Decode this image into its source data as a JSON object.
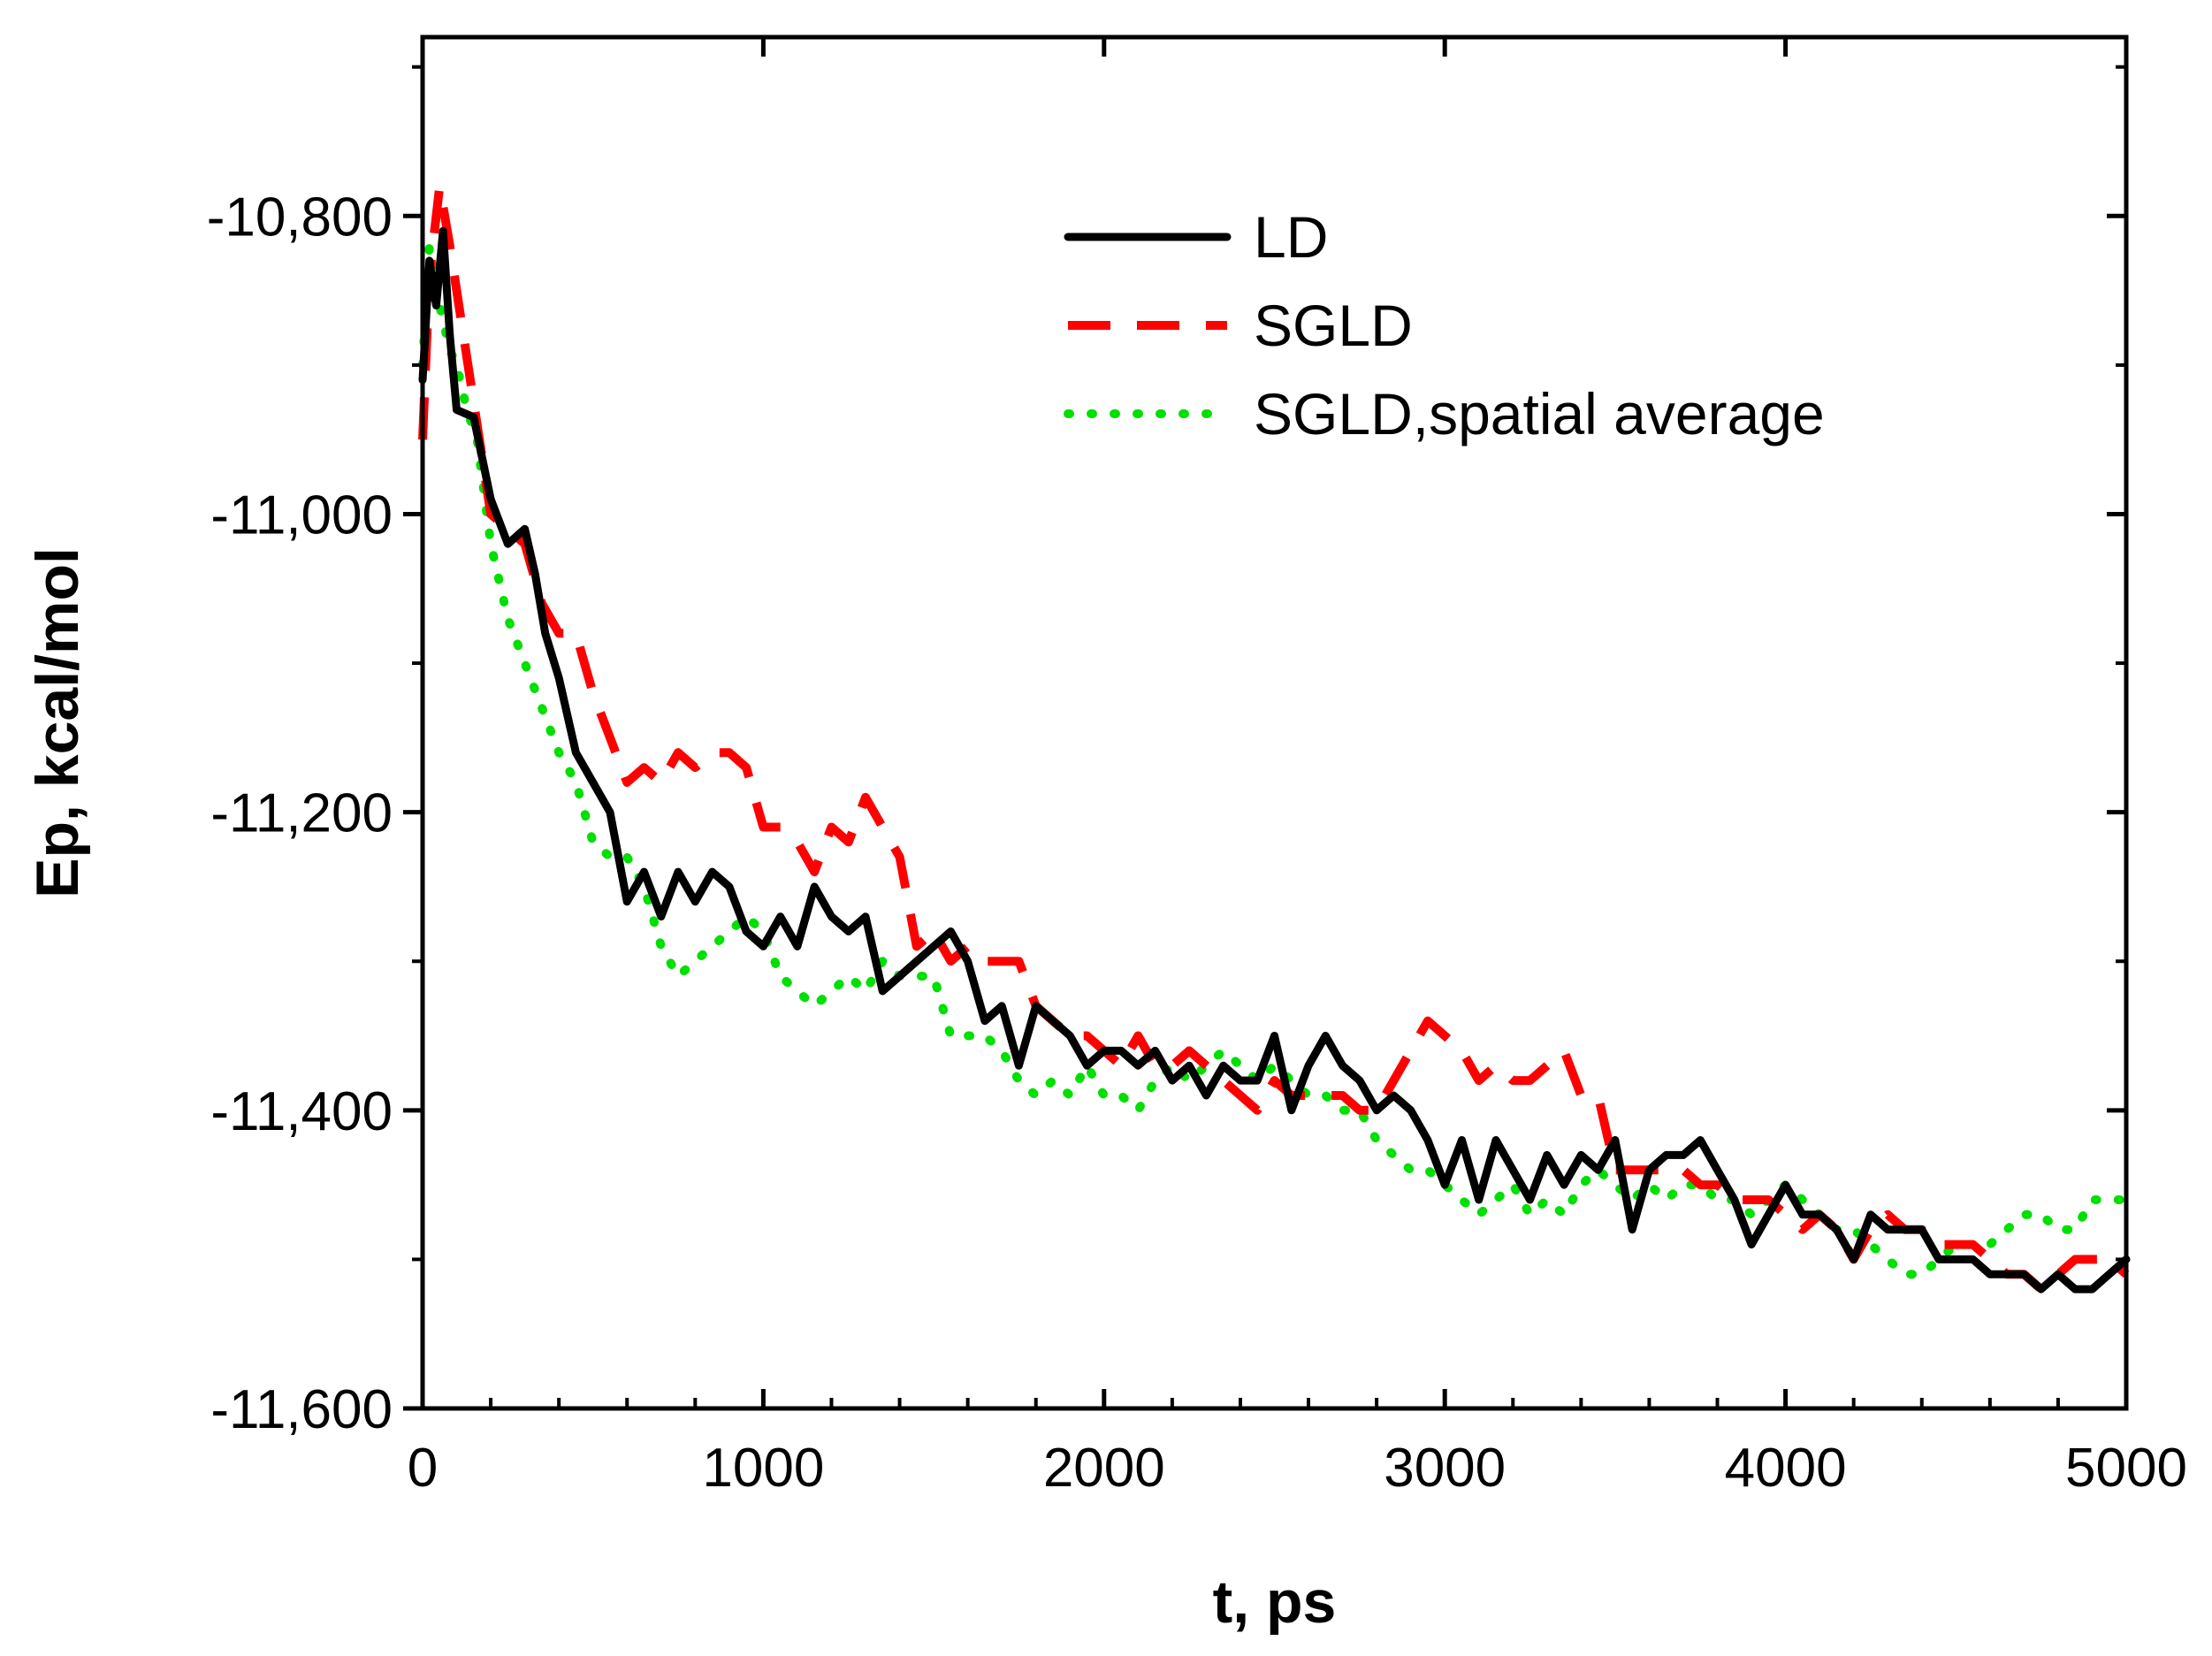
{
  "chart_data": {
    "type": "line",
    "title": "",
    "xlabel": "t, ps",
    "ylabel": "Ep, kcal/mol",
    "xlim": [
      0,
      5000
    ],
    "ylim": [
      -11600,
      -10680
    ],
    "x_ticks": [
      0,
      1000,
      2000,
      3000,
      4000,
      5000
    ],
    "x_tick_labels": [
      "0",
      "1000",
      "2000",
      "3000",
      "4000",
      "5000"
    ],
    "y_ticks": [
      -11600,
      -11400,
      -11200,
      -11000,
      -10800
    ],
    "y_tick_labels": [
      "-11,600",
      "-11,400",
      "-11,200",
      "-11,000",
      "-10,800"
    ],
    "x_minor_step": 200,
    "y_minor_step": 100,
    "grid": false,
    "legend_position": "top-right",
    "series": [
      {
        "name": "LD",
        "color": "#000000",
        "style": "solid",
        "x": [
          0,
          20,
          40,
          60,
          80,
          100,
          150,
          200,
          250,
          300,
          330,
          360,
          400,
          450,
          500,
          550,
          600,
          650,
          700,
          750,
          800,
          850,
          900,
          950,
          1000,
          1050,
          1100,
          1150,
          1200,
          1250,
          1300,
          1350,
          1400,
          1450,
          1500,
          1550,
          1600,
          1650,
          1700,
          1750,
          1800,
          1850,
          1900,
          1950,
          2000,
          2050,
          2100,
          2150,
          2200,
          2250,
          2300,
          2350,
          2400,
          2450,
          2500,
          2550,
          2600,
          2650,
          2700,
          2750,
          2800,
          2850,
          2900,
          2950,
          3000,
          3050,
          3100,
          3150,
          3200,
          3250,
          3300,
          3350,
          3400,
          3450,
          3500,
          3550,
          3600,
          3650,
          3700,
          3750,
          3800,
          3850,
          3900,
          3950,
          4000,
          4050,
          4100,
          4150,
          4200,
          4250,
          4300,
          4350,
          4400,
          4450,
          4500,
          4550,
          4600,
          4650,
          4700,
          4750,
          4800,
          4850,
          4900,
          4950,
          5000
        ],
        "y": [
          -10910,
          -10830,
          -10860,
          -10810,
          -10880,
          -10930,
          -10935,
          -10990,
          -11020,
          -11010,
          -11040,
          -11080,
          -11110,
          -11160,
          -11180,
          -11200,
          -11260,
          -11240,
          -11270,
          -11240,
          -11260,
          -11240,
          -11250,
          -11280,
          -11290,
          -11270,
          -11290,
          -11250,
          -11270,
          -11280,
          -11270,
          -11320,
          -11310,
          -11300,
          -11290,
          -11280,
          -11300,
          -11340,
          -11330,
          -11370,
          -11330,
          -11340,
          -11350,
          -11370,
          -11360,
          -11360,
          -11370,
          -11360,
          -11380,
          -11370,
          -11390,
          -11370,
          -11380,
          -11380,
          -11350,
          -11400,
          -11370,
          -11350,
          -11370,
          -11380,
          -11400,
          -11390,
          -11400,
          -11420,
          -11450,
          -11420,
          -11460,
          -11420,
          -11440,
          -11460,
          -11430,
          -11450,
          -11430,
          -11440,
          -11420,
          -11480,
          -11440,
          -11430,
          -11430,
          -11420,
          -11440,
          -11460,
          -11490,
          -11470,
          -11450,
          -11470,
          -11470,
          -11480,
          -11500,
          -11470,
          -11480,
          -11480,
          -11480,
          -11500,
          -11500,
          -11500,
          -11510,
          -11510,
          -11510,
          -11520,
          -11510,
          -11520,
          -11520,
          -11510,
          -11500
        ]
      },
      {
        "name": "SGLD",
        "color": "#ff0000",
        "style": "dashed",
        "x": [
          0,
          20,
          50,
          80,
          120,
          160,
          200,
          250,
          300,
          350,
          400,
          450,
          500,
          550,
          600,
          650,
          700,
          750,
          800,
          850,
          900,
          950,
          1000,
          1050,
          1100,
          1150,
          1200,
          1250,
          1300,
          1350,
          1400,
          1450,
          1500,
          1550,
          1600,
          1650,
          1700,
          1750,
          1800,
          1850,
          1900,
          1950,
          2000,
          2050,
          2100,
          2150,
          2200,
          2250,
          2300,
          2350,
          2400,
          2450,
          2500,
          2550,
          2600,
          2650,
          2700,
          2750,
          2800,
          2850,
          2900,
          2950,
          3000,
          3050,
          3100,
          3150,
          3200,
          3250,
          3300,
          3350,
          3400,
          3450,
          3500,
          3550,
          3600,
          3650,
          3700,
          3750,
          3800,
          3850,
          3900,
          3950,
          4000,
          4050,
          4100,
          4150,
          4200,
          4250,
          4300,
          4350,
          4400,
          4450,
          4500,
          4550,
          4600,
          4650,
          4700,
          4750,
          4800,
          4850,
          4900,
          4950,
          5000
        ],
        "y": [
          -10950,
          -10840,
          -10780,
          -10820,
          -10880,
          -10940,
          -11000,
          -11010,
          -11020,
          -11060,
          -11080,
          -11080,
          -11120,
          -11150,
          -11180,
          -11170,
          -11180,
          -11160,
          -11170,
          -11160,
          -11160,
          -11170,
          -11210,
          -11210,
          -11220,
          -11240,
          -11210,
          -11220,
          -11190,
          -11210,
          -11230,
          -11290,
          -11280,
          -11300,
          -11290,
          -11300,
          -11300,
          -11300,
          -11330,
          -11340,
          -11350,
          -11350,
          -11360,
          -11370,
          -11350,
          -11370,
          -11370,
          -11360,
          -11370,
          -11380,
          -11390,
          -11400,
          -11380,
          -11390,
          -11390,
          -11390,
          -11390,
          -11400,
          -11400,
          -11380,
          -11360,
          -11340,
          -11350,
          -11360,
          -11380,
          -11370,
          -11380,
          -11380,
          -11370,
          -11360,
          -11390,
          -11390,
          -11440,
          -11440,
          -11440,
          -11440,
          -11440,
          -11450,
          -11450,
          -11460,
          -11460,
          -11460,
          -11470,
          -11480,
          -11470,
          -11480,
          -11500,
          -11480,
          -11470,
          -11480,
          -11480,
          -11490,
          -11490,
          -11490,
          -11500,
          -11510,
          -11510,
          -11520,
          -11510,
          -11500,
          -11500,
          -11500,
          -11510
        ]
      },
      {
        "name": "SGLD,spatial average",
        "color": "#00e000",
        "style": "dotted",
        "x": [
          0,
          20,
          40,
          60,
          80,
          100,
          130,
          160,
          200,
          250,
          300,
          350,
          400,
          450,
          500,
          550,
          600,
          650,
          700,
          750,
          800,
          850,
          900,
          950,
          1000,
          1050,
          1100,
          1150,
          1200,
          1250,
          1300,
          1350,
          1400,
          1450,
          1500,
          1550,
          1600,
          1650,
          1700,
          1750,
          1800,
          1850,
          1900,
          1950,
          2000,
          2050,
          2100,
          2150,
          2200,
          2250,
          2300,
          2350,
          2400,
          2450,
          2500,
          2550,
          2600,
          2650,
          2700,
          2750,
          2800,
          2850,
          2900,
          2950,
          3000,
          3050,
          3100,
          3150,
          3200,
          3250,
          3300,
          3350,
          3400,
          3450,
          3500,
          3550,
          3600,
          3650,
          3700,
          3750,
          3800,
          3850,
          3900,
          3950,
          4000,
          4050,
          4100,
          4150,
          4200,
          4250,
          4300,
          4350,
          4400,
          4450,
          4500,
          4550,
          4600,
          4650,
          4700,
          4750,
          4800,
          4850,
          4900,
          4950,
          5000
        ],
        "y": [
          -10900,
          -10820,
          -10850,
          -10870,
          -10890,
          -10900,
          -10930,
          -10950,
          -11020,
          -11070,
          -11100,
          -11130,
          -11160,
          -11180,
          -11220,
          -11230,
          -11230,
          -11250,
          -11290,
          -11310,
          -11300,
          -11290,
          -11280,
          -11270,
          -11280,
          -11310,
          -11320,
          -11330,
          -11320,
          -11310,
          -11320,
          -11300,
          -11310,
          -11310,
          -11310,
          -11350,
          -11350,
          -11350,
          -11360,
          -11380,
          -11390,
          -11380,
          -11390,
          -11370,
          -11390,
          -11390,
          -11400,
          -11380,
          -11370,
          -11380,
          -11370,
          -11360,
          -11370,
          -11380,
          -11370,
          -11380,
          -11390,
          -11390,
          -11400,
          -11400,
          -11420,
          -11430,
          -11440,
          -11440,
          -11450,
          -11460,
          -11470,
          -11460,
          -11450,
          -11470,
          -11460,
          -11470,
          -11450,
          -11440,
          -11450,
          -11460,
          -11450,
          -11460,
          -11450,
          -11450,
          -11460,
          -11460,
          -11470,
          -11460,
          -11450,
          -11460,
          -11470,
          -11480,
          -11480,
          -11490,
          -11500,
          -11510,
          -11510,
          -11500,
          -11490,
          -11490,
          -11490,
          -11480,
          -11470,
          -11470,
          -11480,
          -11480,
          -11460,
          -11460,
          -11460
        ]
      }
    ]
  }
}
